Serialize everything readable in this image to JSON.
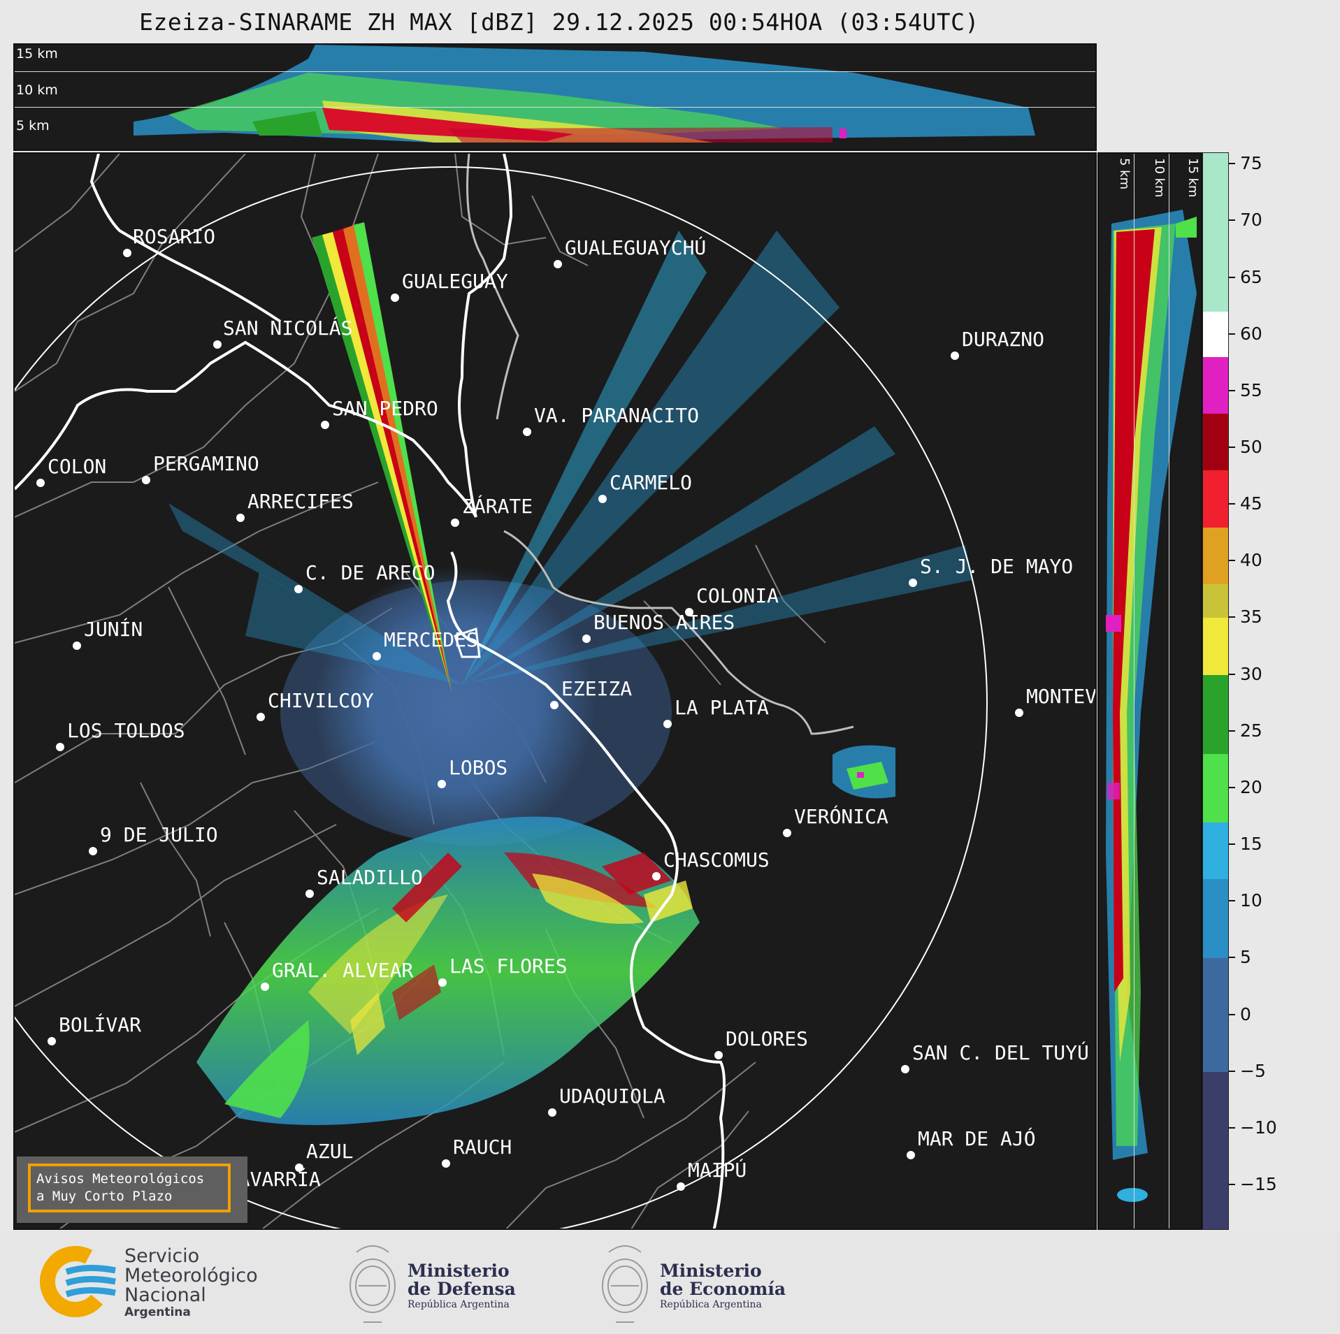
{
  "title": "Ezeiza-SINARAME ZH MAX [dBZ] 29.12.2025 00:54HOA (03:54UTC)",
  "top_strip": {
    "height_labels": [
      "15 km",
      "10 km",
      "5 km"
    ]
  },
  "side_strip": {
    "height_labels": [
      "5 km",
      "10 km",
      "15 km"
    ]
  },
  "colorbar": {
    "unit": "dBZ",
    "ticks": [
      "75",
      "70",
      "65",
      "60",
      "55",
      "50",
      "45",
      "40",
      "35",
      "30",
      "25",
      "20",
      "15",
      "10",
      "5",
      "0",
      "−5",
      "−10",
      "−15"
    ],
    "range": [
      -19,
      76
    ],
    "colors": {
      "minus": "#3a3e68",
      "zero": "#3d6a9e",
      "ten": "#2a8fc4",
      "fifteen": "#2fb0e0",
      "twenty": "#4fe04a",
      "twentyfive": "#2aa32c",
      "thirty": "#f0e83a",
      "thirtyfive": "#c9c33a",
      "forty": "#e0a020",
      "fortyfive": "#f0202e",
      "fifty": "#a00010",
      "fiftyfive": "#e020c0",
      "sixty": "#ffffff",
      "seventy": "#a8e8c8"
    }
  },
  "cities": [
    {
      "name": "ROSARIO"
    },
    {
      "name": "GUALEGUAYCHÚ"
    },
    {
      "name": "GUALEGUAY"
    },
    {
      "name": "SAN NICOLÁS"
    },
    {
      "name": "DURAZNO"
    },
    {
      "name": "SAN PEDRO"
    },
    {
      "name": "VA. PARANACITO"
    },
    {
      "name": "COLON"
    },
    {
      "name": "PERGAMINO"
    },
    {
      "name": "CARMELO"
    },
    {
      "name": "ARRECIFES"
    },
    {
      "name": "ZÁRATE"
    },
    {
      "name": "S. J. DE MAYO"
    },
    {
      "name": "C. DE ARECO"
    },
    {
      "name": "COLONIA"
    },
    {
      "name": "JUNÍN"
    },
    {
      "name": "BUENOS AIRES"
    },
    {
      "name": "MERCEDES"
    },
    {
      "name": "MONTEVIDEO"
    },
    {
      "name": "CHIVILCOY"
    },
    {
      "name": "EZEIZA"
    },
    {
      "name": "LA PLATA"
    },
    {
      "name": "LOS TOLDOS"
    },
    {
      "name": "LOBOS"
    },
    {
      "name": "VERÓNICA"
    },
    {
      "name": "9 DE JULIO"
    },
    {
      "name": "CHASCOMUS"
    },
    {
      "name": "SALADILLO"
    },
    {
      "name": "GRAL. ALVEAR"
    },
    {
      "name": "LAS FLORES"
    },
    {
      "name": "BOLÍVAR"
    },
    {
      "name": "DOLORES"
    },
    {
      "name": "SAN C. DEL TUYÚ"
    },
    {
      "name": "UDAQUIOLA"
    },
    {
      "name": "MAR DE AJÓ"
    },
    {
      "name": "AZUL"
    },
    {
      "name": "RAUCH"
    },
    {
      "name": "OLAVARRÍA"
    },
    {
      "name": "MAIPÚ"
    }
  ],
  "aviso": {
    "line1": "Avisos Meteorológicos",
    "line2": "a Muy Corto Plazo"
  },
  "footer": {
    "smn": {
      "line1": "Servicio",
      "line2": "Meteorológico",
      "line3": "Nacional",
      "line4": "Argentina"
    },
    "defensa": {
      "line1": "Ministerio",
      "line2": "de Defensa",
      "line3": "República Argentina"
    },
    "economia": {
      "line1": "Ministerio",
      "line2": "de Economía",
      "line3": "República Argentina"
    }
  }
}
